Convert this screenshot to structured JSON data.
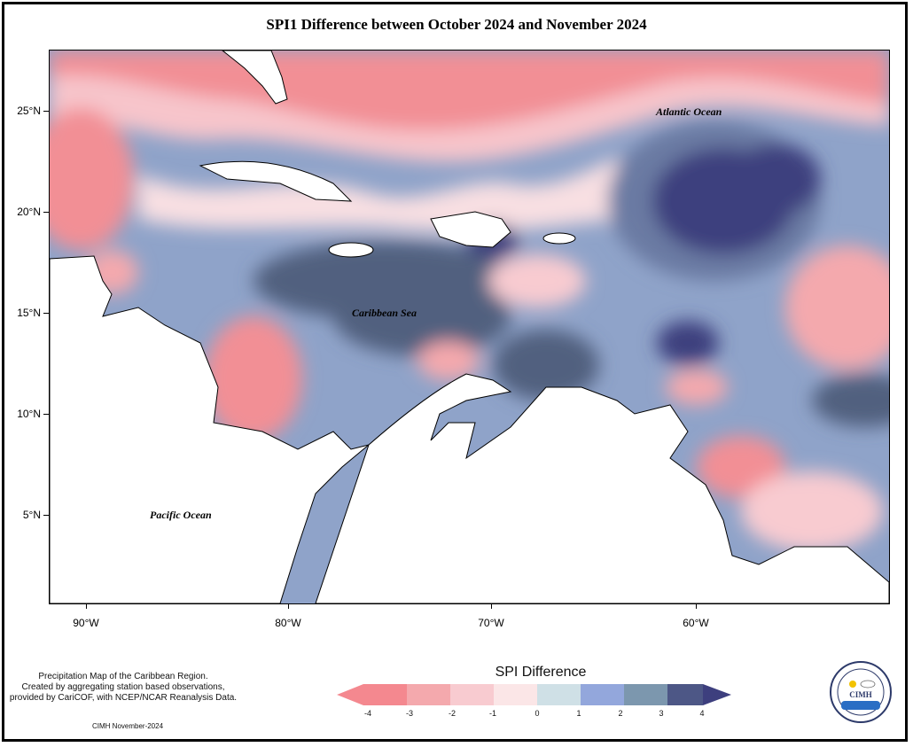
{
  "title": "SPI1 Difference between October 2024 and November 2024",
  "axes": {
    "y_labels": [
      "25°N",
      "20°N",
      "15°N",
      "10°N",
      "5°N"
    ],
    "x_labels": [
      "90°W",
      "80°W",
      "70°W",
      "60°W"
    ]
  },
  "map_labels": {
    "atlantic": "Atlantic Ocean",
    "caribbean": "Caribbean Sea",
    "pacific": "Pacific Ocean"
  },
  "legend": {
    "title": "SPI Difference",
    "ticks": [
      "-4",
      "-3",
      "-2",
      "-1",
      "0",
      "1",
      "2",
      "3",
      "4"
    ],
    "colors": [
      "#f4888f",
      "#f4a9ad",
      "#f8cbd0",
      "#fbe6e7",
      "#cfe0e6",
      "#93a7dc",
      "#7c97ae",
      "#4d5786",
      "#3d3f7e"
    ]
  },
  "caption": {
    "line1": "Precipitation Map of the Caribbean Region.",
    "line2": "Created by aggregating station based observations,",
    "line3": "provided by CariCOF, with NCEP/NCAR Reanalysis Data."
  },
  "credit": "CIMH November-2024",
  "logo": {
    "text": "CIMH",
    "ring_text": "Caribbean Institute for Meteorology and Hydrology"
  }
}
